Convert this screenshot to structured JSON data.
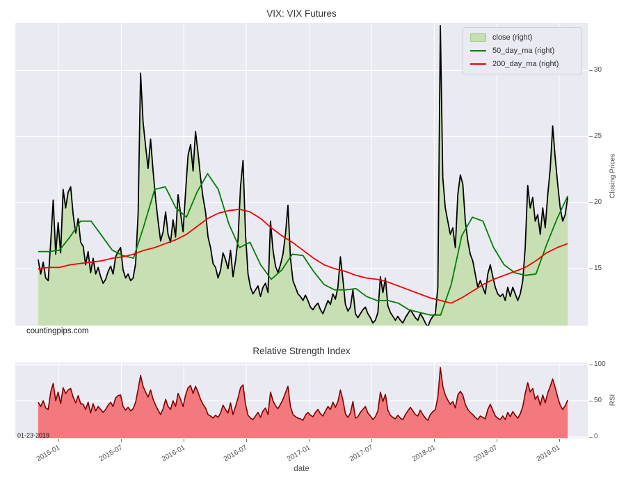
{
  "page": {
    "watermark": "countingpips.com",
    "date_stamp": "01-23-2019"
  },
  "colors": {
    "figure_bg": "#ffffff",
    "plot_bg": "#eaeaf2",
    "grid": "#ffffff",
    "close_line": "#000000",
    "close_fill": "#c7dfb3",
    "ma50": "#007d00",
    "ma200": "#f40000",
    "rsi_line": "#7e0000",
    "rsi_fill": "#f2797d"
  },
  "x_axis": {
    "label": "date",
    "data_span": [
      0.04,
      0.965
    ],
    "ticks": [
      {
        "label": "2015-01",
        "f": 0.039
      },
      {
        "label": "2015-07",
        "f": 0.157
      },
      {
        "label": "2016-01",
        "f": 0.275
      },
      {
        "label": "2016-07",
        "f": 0.393
      },
      {
        "label": "2017-01",
        "f": 0.512
      },
      {
        "label": "2017-07",
        "f": 0.63
      },
      {
        "label": "2018-01",
        "f": 0.748
      },
      {
        "label": "2018-07",
        "f": 0.866
      },
      {
        "label": "2019-01",
        "f": 0.984
      }
    ]
  },
  "chart_data": [
    {
      "type": "area",
      "title": "VIX: VIX Futures",
      "ylabel": "Closing Prices",
      "ylim": [
        10.7,
        33.6
      ],
      "yticks": [
        15,
        20,
        25,
        30
      ],
      "grid": true,
      "legend_position": "upper right",
      "legend": [
        {
          "label": "close (right)",
          "swatch": "patch",
          "color": "#c7dfb3"
        },
        {
          "label": "50_day_ma (right)",
          "swatch": "line",
          "color": "#007d00"
        },
        {
          "label": "200_day_ma (right)",
          "swatch": "line",
          "color": "#f40000"
        }
      ],
      "series": [
        {
          "name": "close",
          "kind": "area",
          "line_color": "#000000",
          "fill_color": "#c7dfb3",
          "width": 1.8,
          "values": [
            15.7,
            14.6,
            15.5,
            14.3,
            14.1,
            17.0,
            20.2,
            16.1,
            18.5,
            16.2,
            21.0,
            19.6,
            20.8,
            21.2,
            19.1,
            17.7,
            18.8,
            17.0,
            16.7,
            15.3,
            16.3,
            14.7,
            15.8,
            14.6,
            15.1,
            14.4,
            13.9,
            14.2,
            14.8,
            15.2,
            14.6,
            15.9,
            16.3,
            16.6,
            14.9,
            14.3,
            14.6,
            14.1,
            14.3,
            15.4,
            19.2,
            29.8,
            26.1,
            24.3,
            22.6,
            24.8,
            22.4,
            20.3,
            18.6,
            17.1,
            17.8,
            19.3,
            17.6,
            17.0,
            18.7,
            17.4,
            20.6,
            19.2,
            17.8,
            20.8,
            23.6,
            24.4,
            22.4,
            25.4,
            23.8,
            21.9,
            20.4,
            19.3,
            17.4,
            16.6,
            15.4,
            15.1,
            14.3,
            14.9,
            16.2,
            15.7,
            15.0,
            16.4,
            14.4,
            15.6,
            17.2,
            21.2,
            23.2,
            17.6,
            14.6,
            13.6,
            13.1,
            13.4,
            13.7,
            12.9,
            13.6,
            13.9,
            13.2,
            18.6,
            16.4,
            15.2,
            14.7,
            15.3,
            16.1,
            17.6,
            19.8,
            15.8,
            14.1,
            13.6,
            13.1,
            12.9,
            12.6,
            13.0,
            12.6,
            12.1,
            11.9,
            12.2,
            12.4,
            11.9,
            11.6,
            12.1,
            12.6,
            12.3,
            13.1,
            12.7,
            13.6,
            15.9,
            14.2,
            12.3,
            11.8,
            12.1,
            13.4,
            11.6,
            11.3,
            11.6,
            11.9,
            12.1,
            11.6,
            11.3,
            10.9,
            11.1,
            11.7,
            14.4,
            13.2,
            14.3,
            12.2,
            11.7,
            11.4,
            11.1,
            11.4,
            11.1,
            10.9,
            11.3,
            11.6,
            11.9,
            11.6,
            11.3,
            11.1,
            11.6,
            11.3,
            10.9,
            10.6,
            11.1,
            11.4,
            11.6,
            13.6,
            33.4,
            21.9,
            19.6,
            18.6,
            17.6,
            18.1,
            16.6,
            20.6,
            22.1,
            21.4,
            18.6,
            17.1,
            16.1,
            15.6,
            14.6,
            13.6,
            14.1,
            13.6,
            13.1,
            14.6,
            15.3,
            14.4,
            13.6,
            13.1,
            12.9,
            13.1,
            12.6,
            13.6,
            12.9,
            13.6,
            13.1,
            12.6,
            13.1,
            14.1,
            16.6,
            21.3,
            19.6,
            20.4,
            18.6,
            19.1,
            17.6,
            19.6,
            18.1,
            20.6,
            22.6,
            25.8,
            23.4,
            21.4,
            19.6,
            18.6,
            19.1,
            20.4
          ]
        },
        {
          "name": "50_day_ma",
          "kind": "line",
          "line_color": "#007d00",
          "width": 1.8,
          "values": [
            16.3,
            16.3,
            16.4,
            17.4,
            18.6,
            18.6,
            17.5,
            16.4,
            16.0,
            15.8,
            18.3,
            21.0,
            21.2,
            19.6,
            18.9,
            20.8,
            22.2,
            21.0,
            18.4,
            16.6,
            17.0,
            15.3,
            14.2,
            14.9,
            16.1,
            16.0,
            14.8,
            13.8,
            13.4,
            13.4,
            13.5,
            12.9,
            12.6,
            12.6,
            12.4,
            11.9,
            11.7,
            11.5,
            11.5,
            13.8,
            17.5,
            18.9,
            18.6,
            16.6,
            15.3,
            14.7,
            14.5,
            14.6,
            16.8,
            18.8,
            20.5
          ]
        },
        {
          "name": "200_day_ma",
          "kind": "line",
          "line_color": "#f40000",
          "width": 1.8,
          "values": [
            15.0,
            15.1,
            15.1,
            15.3,
            15.4,
            15.5,
            15.6,
            15.8,
            15.9,
            16.1,
            16.4,
            16.6,
            16.9,
            17.2,
            17.6,
            18.2,
            18.8,
            19.2,
            19.4,
            19.5,
            19.3,
            18.8,
            18.1,
            17.5,
            17.0,
            16.4,
            15.8,
            15.3,
            15.0,
            14.8,
            14.5,
            14.3,
            14.2,
            14.0,
            13.7,
            13.4,
            13.1,
            12.8,
            12.6,
            12.4,
            12.8,
            13.3,
            13.8,
            14.2,
            14.5,
            14.8,
            15.1,
            15.6,
            16.2,
            16.6,
            16.9
          ]
        }
      ]
    },
    {
      "type": "area",
      "title": "Relative Strength Index",
      "ylabel": "RSI",
      "ylim": [
        -1.9,
        102.9
      ],
      "yticks": [
        0,
        50,
        100
      ],
      "grid": true,
      "series": [
        {
          "name": "rsi",
          "kind": "area",
          "line_color": "#7e0000",
          "fill_color": "#f2797d",
          "width": 1.6,
          "values": [
            48,
            42,
            50,
            40,
            38,
            62,
            74,
            50,
            62,
            46,
            68,
            60,
            65,
            67,
            55,
            47,
            57,
            46,
            45,
            38,
            48,
            33,
            46,
            36,
            42,
            38,
            34,
            38,
            44,
            48,
            42,
            54,
            57,
            58,
            42,
            37,
            41,
            36,
            39,
            48,
            66,
            85,
            70,
            62,
            55,
            65,
            52,
            44,
            37,
            31,
            39,
            52,
            42,
            38,
            50,
            42,
            60,
            52,
            42,
            58,
            68,
            71,
            60,
            70,
            62,
            52,
            45,
            40,
            31,
            29,
            26,
            30,
            27,
            33,
            44,
            38,
            33,
            47,
            31,
            42,
            54,
            68,
            72,
            45,
            30,
            26,
            24,
            29,
            34,
            27,
            36,
            40,
            31,
            62,
            50,
            43,
            39,
            45,
            52,
            61,
            70,
            42,
            31,
            28,
            26,
            25,
            23,
            30,
            34,
            30,
            28,
            34,
            38,
            32,
            29,
            36,
            42,
            38,
            48,
            41,
            49,
            65,
            51,
            32,
            27,
            33,
            49,
            26,
            28,
            34,
            38,
            42,
            33,
            29,
            24,
            28,
            36,
            62,
            49,
            59,
            37,
            30,
            27,
            25,
            30,
            26,
            24,
            31,
            36,
            41,
            36,
            31,
            29,
            37,
            31,
            26,
            23,
            31,
            35,
            38,
            55,
            96,
            70,
            58,
            51,
            45,
            49,
            40,
            58,
            63,
            58,
            45,
            38,
            34,
            31,
            27,
            24,
            29,
            27,
            25,
            38,
            45,
            37,
            29,
            26,
            24,
            29,
            24,
            34,
            28,
            35,
            30,
            26,
            32,
            42,
            60,
            75,
            62,
            67,
            52,
            57,
            44,
            58,
            47,
            61,
            70,
            80,
            68,
            55,
            44,
            38,
            43,
            51
          ]
        }
      ]
    }
  ]
}
